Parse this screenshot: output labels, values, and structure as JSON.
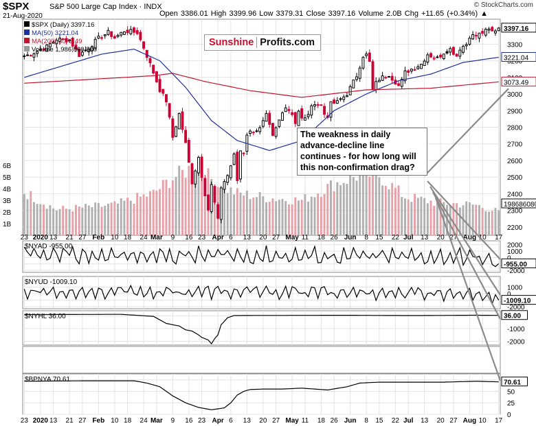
{
  "header": {
    "symbol": "$SPX",
    "name": "S&P 500 Large Cap Index",
    "exchange": "INDX",
    "date": "21-Aug-2020",
    "stats": "Open 3386.01  High 3399.96  Low 3379.31  Close 3397.16  Volume 2.0B  Chg +11.65 (+0.34%) ▲",
    "credit": "© StockCharts.com"
  },
  "watermark": {
    "part1": "Sunshine",
    "part2": "Profits.com"
  },
  "annotation": "The weakness in daily advance-decline line continues - for how long will this non-confirmation drag?",
  "colors": {
    "up": "#000000",
    "down": "#cc0033",
    "ma50": "#1f2f9c",
    "ma200": "#c0142f",
    "vol_up": "#b0b0b0",
    "vol_down": "#e8a0a8",
    "arrow": "#8a8a8a"
  },
  "chart_data": [
    {
      "type": "candlestick",
      "legend": [
        "$SPX (Daily) 3397.16",
        "MA(50) 3221.04",
        "MA(200) 3073.49",
        "Volume 1,986,860,800"
      ],
      "ylim": [
        2150,
        3450
      ],
      "yticks": [
        2200,
        2300,
        2400,
        2500,
        2600,
        2700,
        2800,
        2900,
        3000,
        3100,
        3200,
        3300
      ],
      "volume_ticks": [
        "1B",
        "2B",
        "3B",
        "4B",
        "5B",
        "6B"
      ],
      "last_labels": {
        "price": "3397.16",
        "ma50": "3221.04",
        "ma200": "3073.49",
        "volume": "1986860800"
      },
      "x_labels": [
        "23",
        "2020",
        "13",
        "21",
        "27",
        "Feb",
        "10",
        "18",
        "24",
        "Mar",
        "9",
        "16",
        "23",
        "Apr",
        "6",
        "13",
        "20",
        "27",
        "May",
        "11",
        "18",
        "26",
        "Jun",
        "8",
        "15",
        "22",
        "Jul",
        "13",
        "20",
        "27",
        "Aug",
        "10",
        "17"
      ],
      "anchors": [
        [
          0,
          3225
        ],
        [
          4,
          3258
        ],
        [
          7,
          3285
        ],
        [
          10,
          3330
        ],
        [
          14,
          3325
        ],
        [
          17,
          3235
        ],
        [
          20,
          3280
        ],
        [
          23,
          3335
        ],
        [
          26,
          3370
        ],
        [
          28,
          3338
        ],
        [
          31,
          3380
        ],
        [
          35,
          3370
        ],
        [
          37,
          3280
        ],
        [
          40,
          3130
        ],
        [
          42,
          3025
        ],
        [
          44,
          2960
        ],
        [
          46,
          2740
        ],
        [
          48,
          2880
        ],
        [
          50,
          2700
        ],
        [
          52,
          2470
        ],
        [
          54,
          2620
        ],
        [
          56,
          2400
        ],
        [
          57,
          2305
        ],
        [
          58,
          2450
        ],
        [
          60,
          2240
        ],
        [
          61,
          2440
        ],
        [
          63,
          2510
        ],
        [
          65,
          2630
        ],
        [
          66,
          2480
        ],
        [
          67,
          2660
        ],
        [
          68,
          2650
        ],
        [
          69,
          2760
        ],
        [
          71,
          2780
        ],
        [
          73,
          2790
        ],
        [
          75,
          2870
        ],
        [
          77,
          2740
        ],
        [
          79,
          2840
        ],
        [
          81,
          2930
        ],
        [
          83,
          2880
        ],
        [
          84,
          2830
        ],
        [
          85,
          2900
        ],
        [
          86,
          2850
        ],
        [
          87,
          2850
        ],
        [
          90,
          2950
        ],
        [
          92,
          2930
        ],
        [
          93,
          2880
        ],
        [
          94,
          2870
        ],
        [
          95,
          2940
        ],
        [
          97,
          2950
        ],
        [
          100,
          3000
        ],
        [
          103,
          3110
        ],
        [
          105,
          3230
        ],
        [
          106,
          3235
        ],
        [
          107,
          3190
        ],
        [
          108,
          3020
        ],
        [
          109,
          3065
        ],
        [
          110,
          3090
        ],
        [
          112,
          3110
        ],
        [
          113,
          3115
        ],
        [
          114,
          3095
        ],
        [
          116,
          3050
        ],
        [
          117,
          3080
        ],
        [
          118,
          3130
        ],
        [
          120,
          3150
        ],
        [
          122,
          3170
        ],
        [
          123,
          3180
        ],
        [
          125,
          3240
        ],
        [
          126,
          3230
        ],
        [
          128,
          3215
        ],
        [
          130,
          3250
        ],
        [
          132,
          3270
        ],
        [
          133,
          3250
        ],
        [
          134,
          3230
        ],
        [
          135,
          3275
        ],
        [
          137,
          3300
        ],
        [
          138,
          3350
        ],
        [
          140,
          3350
        ],
        [
          142,
          3370
        ],
        [
          144,
          3385
        ],
        [
          145,
          3375
        ],
        [
          147,
          3397
        ]
      ],
      "ma50": [
        [
          0,
          3100
        ],
        [
          12,
          3170
        ],
        [
          24,
          3240
        ],
        [
          34,
          3270
        ],
        [
          42,
          3200
        ],
        [
          50,
          3040
        ],
        [
          58,
          2840
        ],
        [
          66,
          2720
        ],
        [
          76,
          2660
        ],
        [
          86,
          2720
        ],
        [
          96,
          2900
        ],
        [
          106,
          3000
        ],
        [
          116,
          3080
        ],
        [
          126,
          3120
        ],
        [
          136,
          3190
        ],
        [
          147,
          3221
        ]
      ],
      "ma200": [
        [
          0,
          3065
        ],
        [
          40,
          3110
        ],
        [
          46,
          3125
        ],
        [
          56,
          3075
        ],
        [
          70,
          3020
        ],
        [
          86,
          2980
        ],
        [
          106,
          3025
        ],
        [
          126,
          3035
        ],
        [
          147,
          3073
        ]
      ],
      "volume_billions": [
        [
          0,
          3.7
        ],
        [
          10,
          2.2
        ],
        [
          28,
          2.6
        ],
        [
          40,
          3.6
        ],
        [
          46,
          4.9
        ],
        [
          52,
          5.8
        ],
        [
          56,
          5.3
        ],
        [
          60,
          4.3
        ],
        [
          66,
          3.6
        ],
        [
          76,
          3.2
        ],
        [
          86,
          3.0
        ],
        [
          96,
          4.4
        ],
        [
          105,
          5.3
        ],
        [
          110,
          5.1
        ],
        [
          118,
          3.3
        ],
        [
          128,
          2.8
        ],
        [
          140,
          2.6
        ],
        [
          147,
          2.0
        ]
      ]
    },
    {
      "type": "line",
      "legend": "$NYAD -955.00",
      "last_label": "-955.00",
      "ylim": [
        -2300,
        2600
      ],
      "yticks": [
        -2000,
        -1000,
        0,
        1000,
        2000
      ],
      "amplitude": 1550,
      "anchors": [
        [
          0,
          300
        ],
        [
          80,
          300
        ],
        [
          100,
          200
        ],
        [
          140,
          100
        ],
        [
          147,
          -955
        ]
      ]
    },
    {
      "type": "line",
      "legend": "$NYUD -1009.10",
      "last_label": "-1009.10",
      "ylim": [
        -2300,
        2600
      ],
      "yticks": [
        -2000,
        -1000,
        0,
        1000
      ],
      "amplitude": 1200,
      "anchors": [
        [
          0,
          300
        ],
        [
          100,
          200
        ],
        [
          140,
          0
        ],
        [
          147,
          -1009
        ]
      ]
    },
    {
      "type": "line",
      "legend": "$NYHL 36.00",
      "last_label": "36.00",
      "ylim": [
        -2300,
        400
      ],
      "yticks": [
        -2000,
        -1000,
        0
      ],
      "anchors": [
        [
          0,
          100
        ],
        [
          30,
          120
        ],
        [
          40,
          -40
        ],
        [
          44,
          -600
        ],
        [
          48,
          -800
        ],
        [
          50,
          -1100
        ],
        [
          52,
          -1200
        ],
        [
          54,
          -1500
        ],
        [
          55,
          -1700
        ],
        [
          57,
          -1900
        ],
        [
          58,
          -2200
        ],
        [
          59,
          -1800
        ],
        [
          60,
          -1500
        ],
        [
          61,
          -700
        ],
        [
          63,
          -150
        ],
        [
          65,
          20
        ],
        [
          70,
          30
        ],
        [
          100,
          45
        ],
        [
          120,
          20
        ],
        [
          140,
          50
        ],
        [
          147,
          36
        ]
      ]
    },
    {
      "type": "line",
      "legend": "$BPNYA 70.61",
      "last_label": "70.61",
      "ylim": [
        0,
        88
      ],
      "yticks": [
        0,
        25,
        50,
        75
      ],
      "anchors": [
        [
          0,
          72
        ],
        [
          20,
          73
        ],
        [
          34,
          73
        ],
        [
          38,
          68
        ],
        [
          42,
          60
        ],
        [
          46,
          40
        ],
        [
          50,
          25
        ],
        [
          54,
          15
        ],
        [
          58,
          10
        ],
        [
          62,
          14
        ],
        [
          64,
          25
        ],
        [
          66,
          42
        ],
        [
          68,
          50
        ],
        [
          70,
          54
        ],
        [
          74,
          55
        ],
        [
          80,
          55
        ],
        [
          86,
          57
        ],
        [
          90,
          55
        ],
        [
          94,
          53
        ],
        [
          100,
          60
        ],
        [
          104,
          68
        ],
        [
          110,
          70
        ],
        [
          120,
          70
        ],
        [
          130,
          70
        ],
        [
          140,
          72
        ],
        [
          147,
          70.61
        ]
      ]
    }
  ]
}
